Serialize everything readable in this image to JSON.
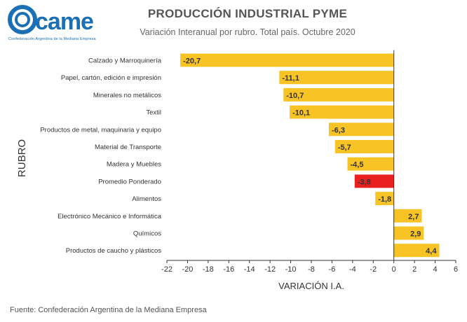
{
  "logo": {
    "text": "came",
    "subtitle": "Confederación Argentina de la Mediana Empresa",
    "color": "#1b6fb5"
  },
  "title": "PRODUCCIÓN INDUSTRIAL PYME",
  "subtitle": "Variación Interanual por rubro. Total país. Octubre 2020",
  "source": "Fuente: Confederación Argentina de la Mediana Empresa",
  "chart_data": {
    "type": "bar",
    "orientation": "horizontal",
    "categories": [
      "Calzado y Marroquinería",
      "Papel, cartón, edición e impresión",
      "Minerales no metálicos",
      "Textil",
      "Productos de metal, maquinaria y equipo",
      "Material de Transporte",
      "Madera y Muebles",
      "Promedio Ponderado",
      "Alimentos",
      "Electrónico Mecánico e Informática",
      "Químicos",
      "Productos de caucho y plásticos"
    ],
    "values": [
      -20.7,
      -11.1,
      -10.7,
      -10.1,
      -6.3,
      -5.7,
      -4.5,
      -3.8,
      -1.8,
      2.7,
      2.9,
      4.4
    ],
    "value_labels": [
      "-20,7",
      "-11,1",
      "-10,7",
      "-10,1",
      "-6,3",
      "-5,7",
      "-4,5",
      "-3,8",
      "-1,8",
      "2,7",
      "2,9",
      "4,4"
    ],
    "highlight_category": "Promedio Ponderado",
    "xlabel": "VARIACIÓN I.A.",
    "ylabel": "RUBRO",
    "xlim": [
      -22,
      6
    ],
    "xticks": [
      -22,
      -20,
      -18,
      -16,
      -14,
      -12,
      -10,
      -8,
      -6,
      -4,
      -2,
      0,
      2,
      4,
      6
    ],
    "grid": false,
    "colors": {
      "bar": "#f7c325",
      "highlight": "#e8201e",
      "axis": "#333333"
    }
  }
}
